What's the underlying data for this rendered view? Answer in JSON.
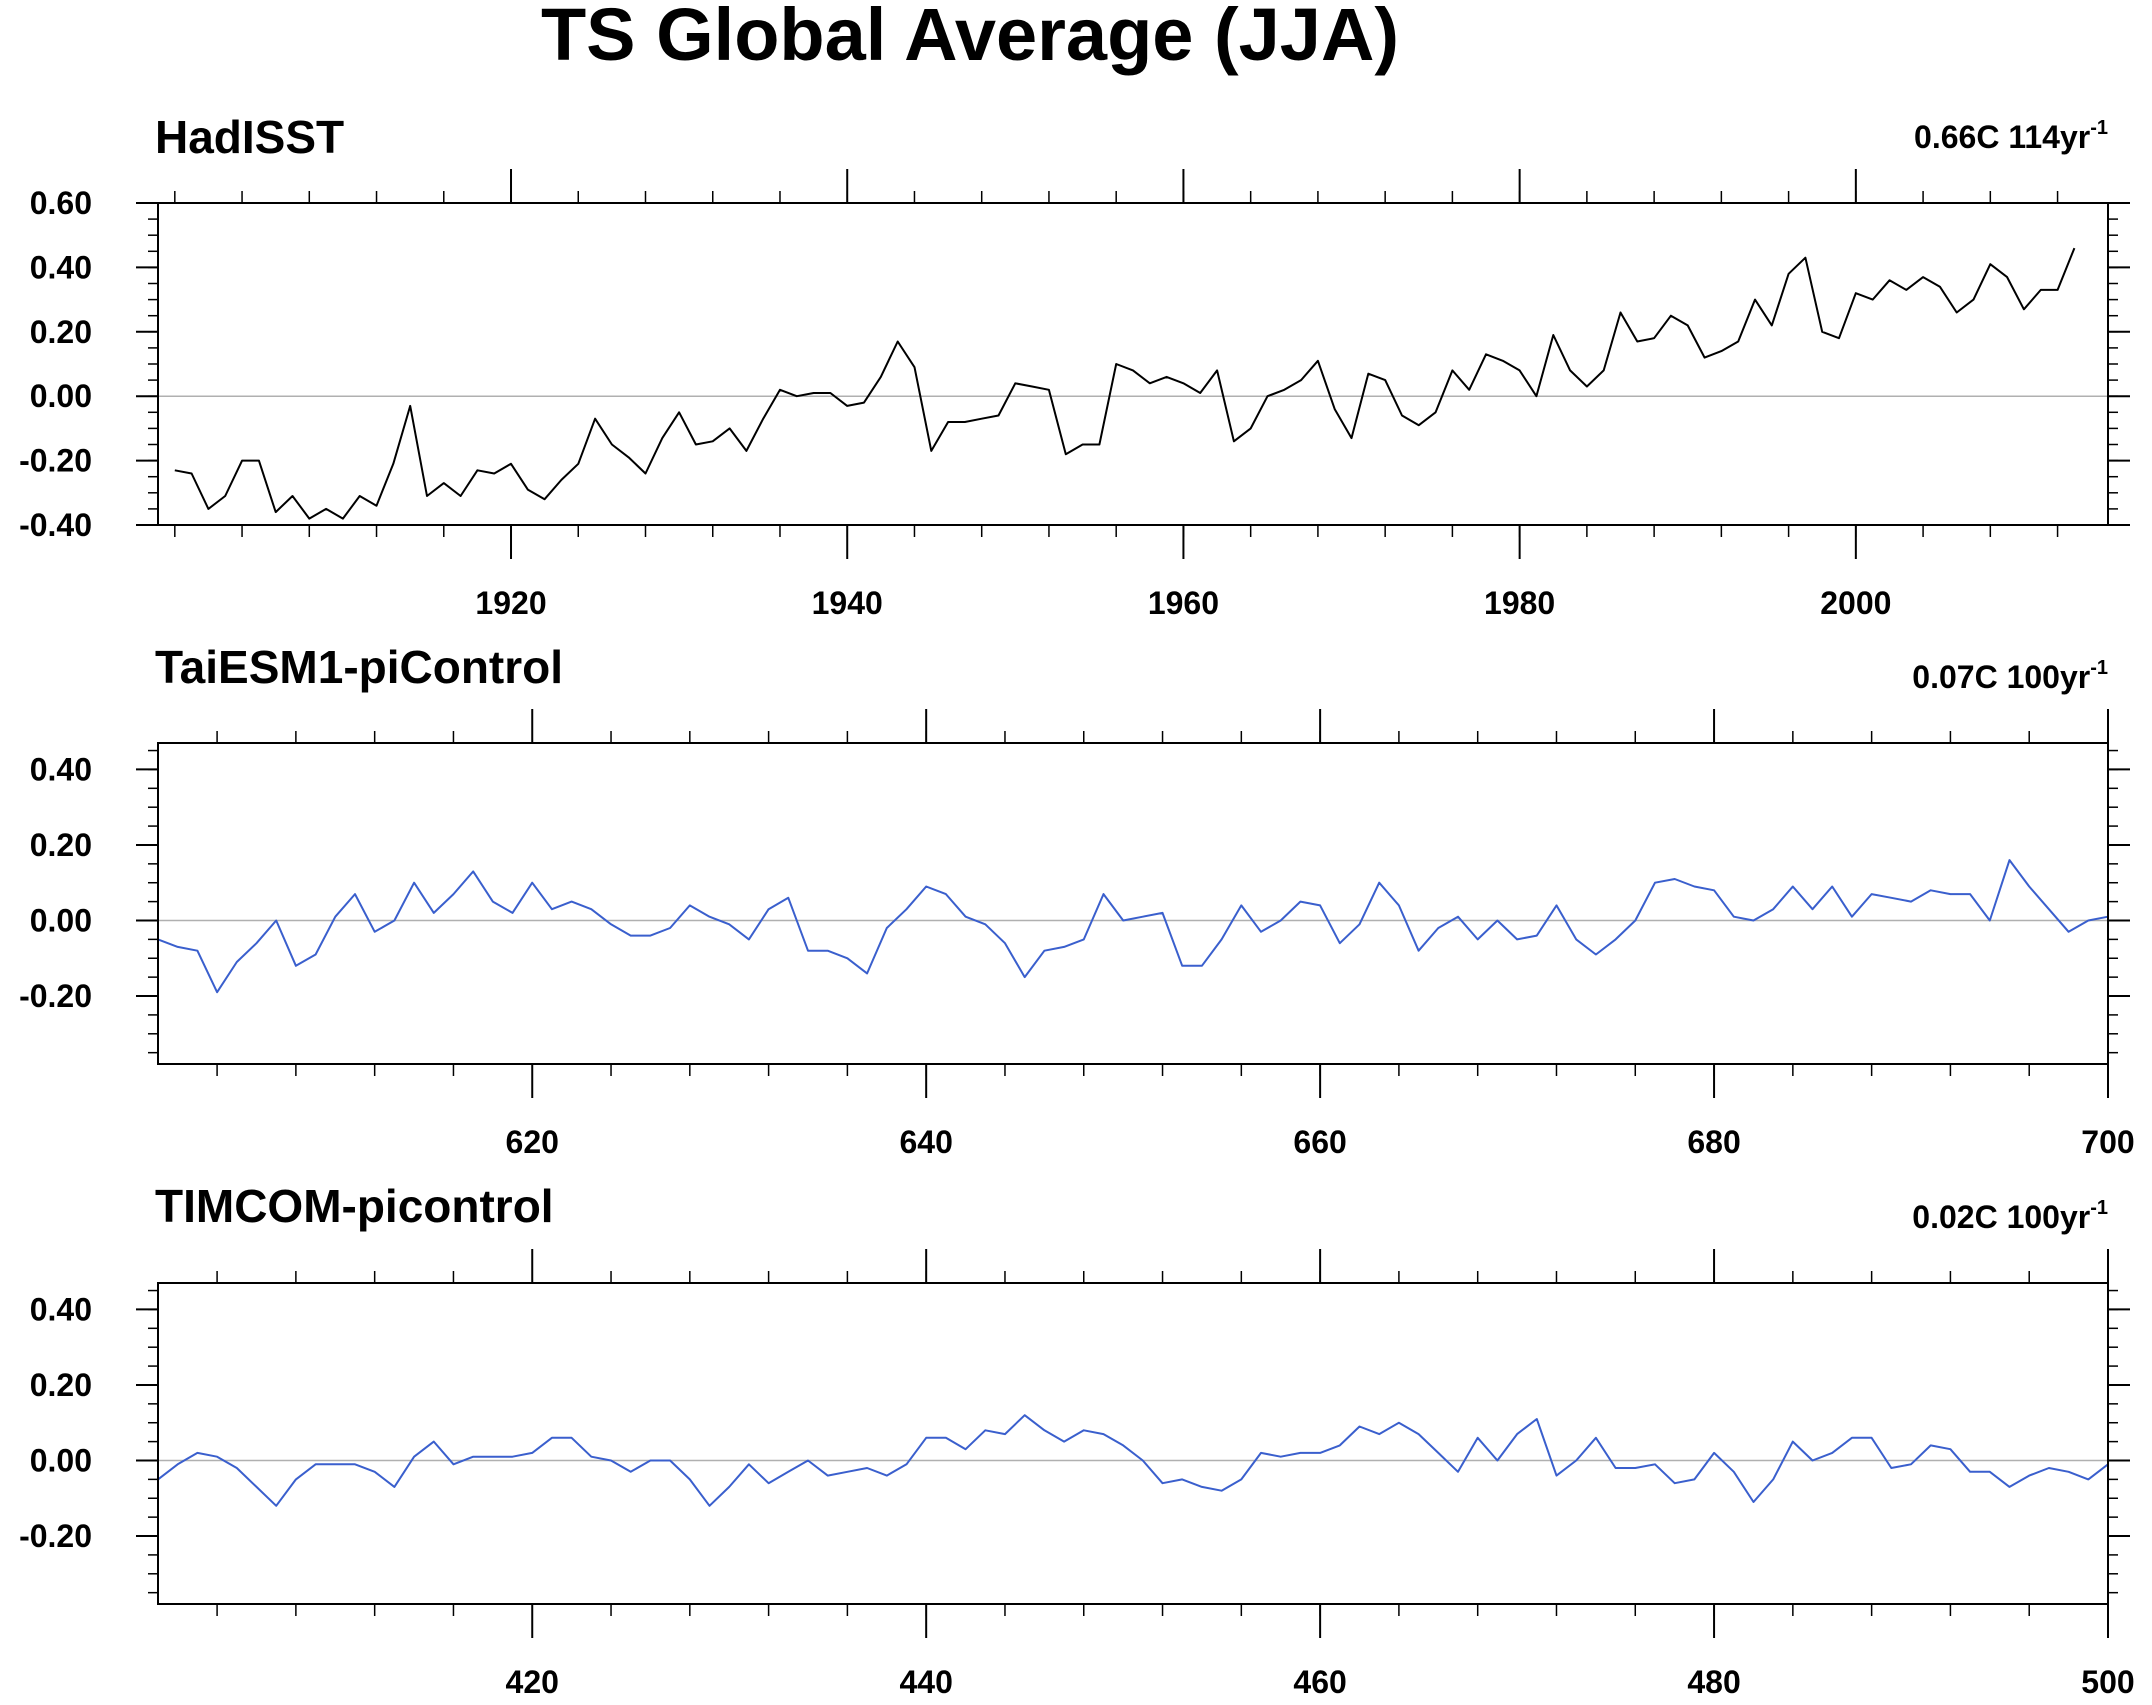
{
  "figure": {
    "title": "TS Global Average (JJA)"
  },
  "chart_data": [
    {
      "type": "line",
      "title": "HadISST",
      "trend_label": "0.66C 114yr",
      "trend_exponent": "-1",
      "line_color": "#000000",
      "xlim": [
        1899,
        2015
      ],
      "ylim": [
        -0.4,
        0.6
      ],
      "y_ticks": [
        -0.4,
        -0.2,
        0.0,
        0.2,
        0.4,
        0.6
      ],
      "y_tick_labels": [
        "-0.40",
        "-0.20",
        "0.00",
        "0.20",
        "0.40",
        "0.60"
      ],
      "y_minor_step": 0.05,
      "x_ticks": [
        1920,
        1940,
        1960,
        1980,
        2000
      ],
      "x_tick_labels": [
        "1920",
        "1940",
        "1960",
        "1980",
        "2000"
      ],
      "x_minor_step": 4,
      "zero_line": true,
      "x_start": 1900,
      "values": [
        -0.23,
        -0.24,
        -0.35,
        -0.31,
        -0.2,
        -0.2,
        -0.36,
        -0.31,
        -0.38,
        -0.35,
        -0.38,
        -0.31,
        -0.34,
        -0.21,
        -0.03,
        -0.31,
        -0.27,
        -0.31,
        -0.23,
        -0.24,
        -0.21,
        -0.29,
        -0.32,
        -0.26,
        -0.21,
        -0.07,
        -0.15,
        -0.19,
        -0.24,
        -0.13,
        -0.05,
        -0.15,
        -0.14,
        -0.1,
        -0.17,
        -0.07,
        0.02,
        0.0,
        0.01,
        0.01,
        -0.03,
        -0.02,
        0.06,
        0.17,
        0.09,
        -0.17,
        -0.08,
        -0.08,
        -0.07,
        -0.06,
        0.04,
        0.03,
        0.02,
        -0.18,
        -0.15,
        -0.15,
        0.1,
        0.08,
        0.04,
        0.06,
        0.04,
        0.01,
        0.08,
        -0.14,
        -0.1,
        0.0,
        0.02,
        0.05,
        0.11,
        -0.04,
        -0.13,
        0.07,
        0.05,
        -0.06,
        -0.09,
        -0.05,
        0.08,
        0.02,
        0.13,
        0.11,
        0.08,
        0.0,
        0.19,
        0.08,
        0.03,
        0.08,
        0.26,
        0.17,
        0.18,
        0.25,
        0.22,
        0.12,
        0.14,
        0.17,
        0.3,
        0.22,
        0.38,
        0.43,
        0.2,
        0.18,
        0.32,
        0.3,
        0.36,
        0.33,
        0.37,
        0.34,
        0.26,
        0.3,
        0.41,
        0.37,
        0.27,
        0.33,
        0.33,
        0.46
      ]
    },
    {
      "type": "line",
      "title": "TaiESM1-piControl",
      "trend_label": "0.07C 100yr",
      "trend_exponent": "-1",
      "line_color": "#3a5fcd",
      "xlim": [
        601,
        700
      ],
      "ylim": [
        -0.38,
        0.47
      ],
      "y_ticks": [
        -0.2,
        0.0,
        0.2,
        0.4
      ],
      "y_tick_labels": [
        "-0.20",
        "0.00",
        "0.20",
        "0.40"
      ],
      "y_minor_step": 0.05,
      "x_ticks": [
        620,
        640,
        660,
        680,
        700
      ],
      "x_tick_labels": [
        "620",
        "640",
        "660",
        "680",
        "700"
      ],
      "x_minor_step": 4,
      "zero_line": true,
      "x_start": 601,
      "values": [
        -0.05,
        -0.07,
        -0.08,
        -0.19,
        -0.11,
        -0.06,
        0.0,
        -0.12,
        -0.09,
        0.01,
        0.07,
        -0.03,
        0.0,
        0.1,
        0.02,
        0.07,
        0.13,
        0.05,
        0.02,
        0.1,
        0.03,
        0.05,
        0.03,
        -0.01,
        -0.04,
        -0.04,
        -0.02,
        0.04,
        0.01,
        -0.01,
        -0.05,
        0.03,
        0.06,
        -0.08,
        -0.08,
        -0.1,
        -0.14,
        -0.02,
        0.03,
        0.09,
        0.07,
        0.01,
        -0.01,
        -0.06,
        -0.15,
        -0.08,
        -0.07,
        -0.05,
        0.07,
        0.0,
        0.01,
        0.02,
        -0.12,
        -0.12,
        -0.05,
        0.04,
        -0.03,
        0.0,
        0.05,
        0.04,
        -0.06,
        -0.01,
        0.1,
        0.04,
        -0.08,
        -0.02,
        0.01,
        -0.05,
        0.0,
        -0.05,
        -0.04,
        0.04,
        -0.05,
        -0.09,
        -0.05,
        0.0,
        0.1,
        0.11,
        0.09,
        0.08,
        0.01,
        0.0,
        0.03,
        0.09,
        0.03,
        0.09,
        0.01,
        0.07,
        0.06,
        0.05,
        0.08,
        0.07,
        0.07,
        0.0,
        0.16,
        0.09,
        0.03,
        -0.03,
        0.0,
        0.01
      ]
    },
    {
      "type": "line",
      "title": "TIMCOM-picontrol",
      "trend_label": "0.02C 100yr",
      "trend_exponent": "-1",
      "line_color": "#3a5fcd",
      "xlim": [
        401,
        500
      ],
      "ylim": [
        -0.38,
        0.47
      ],
      "y_ticks": [
        -0.2,
        0.0,
        0.2,
        0.4
      ],
      "y_tick_labels": [
        "-0.20",
        "0.00",
        "0.20",
        "0.40"
      ],
      "y_minor_step": 0.05,
      "x_ticks": [
        420,
        440,
        460,
        480,
        500
      ],
      "x_tick_labels": [
        "420",
        "440",
        "460",
        "480",
        "500"
      ],
      "x_minor_step": 4,
      "zero_line": true,
      "x_start": 401,
      "values": [
        -0.05,
        -0.01,
        0.02,
        0.01,
        -0.02,
        -0.07,
        -0.12,
        -0.05,
        -0.01,
        -0.01,
        -0.01,
        -0.03,
        -0.07,
        0.01,
        0.05,
        -0.01,
        0.01,
        0.01,
        0.01,
        0.02,
        0.06,
        0.06,
        0.01,
        0.0,
        -0.03,
        0.0,
        0.0,
        -0.05,
        -0.12,
        -0.07,
        -0.01,
        -0.06,
        -0.03,
        0.0,
        -0.04,
        -0.03,
        -0.02,
        -0.04,
        -0.01,
        0.06,
        0.06,
        0.03,
        0.08,
        0.07,
        0.12,
        0.08,
        0.05,
        0.08,
        0.07,
        0.04,
        0.0,
        -0.06,
        -0.05,
        -0.07,
        -0.08,
        -0.05,
        0.02,
        0.01,
        0.02,
        0.02,
        0.04,
        0.09,
        0.07,
        0.1,
        0.07,
        0.02,
        -0.03,
        0.06,
        0.0,
        0.07,
        0.11,
        -0.04,
        0.0,
        0.06,
        -0.02,
        -0.02,
        -0.01,
        -0.06,
        -0.05,
        0.02,
        -0.03,
        -0.11,
        -0.05,
        0.05,
        0.0,
        0.02,
        0.06,
        0.06,
        -0.02,
        -0.01,
        0.04,
        0.03,
        -0.03,
        -0.03,
        -0.07,
        -0.04,
        -0.02,
        -0.03,
        -0.05,
        -0.01
      ]
    }
  ]
}
